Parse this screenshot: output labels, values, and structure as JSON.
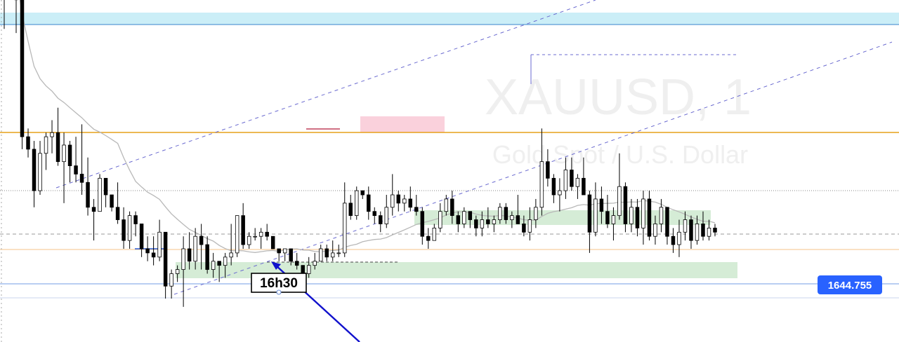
{
  "watermark": {
    "symbol": "XAUUSD, 1",
    "description": "Gold Spot / U.S. Dollar"
  },
  "price_badge": {
    "label": "1644.755",
    "color": "#2962ff"
  },
  "callout": {
    "label": "16h30",
    "arrow_color": "#1111cc"
  },
  "chart_data": {
    "type": "candlestick",
    "symbol": "XAUUSD",
    "timeframe": "1",
    "last_price_label": "1644.755",
    "annotation": "16h30",
    "colors": {
      "bullish": "#ffffff",
      "bearish": "#000000",
      "wick": "#000000"
    },
    "candles_ohlc": [
      [
        1652.2,
        1653.0,
        1650.9,
        1652.7
      ],
      [
        1652.7,
        1653.0,
        1651.6,
        1652.4
      ],
      [
        1652.4,
        1652.4,
        1650.8,
        1651.6
      ],
      [
        1651.6,
        1651.6,
        1648.0,
        1648.3
      ],
      [
        1648.3,
        1648.5,
        1647.8,
        1648.0
      ],
      [
        1648.0,
        1648.2,
        1646.6,
        1647.0
      ],
      [
        1647.0,
        1648.2,
        1646.9,
        1647.9
      ],
      [
        1647.9,
        1648.4,
        1647.5,
        1648.3
      ],
      [
        1648.3,
        1648.7,
        1647.9,
        1648.4
      ],
      [
        1648.4,
        1649.0,
        1647.6,
        1647.7
      ],
      [
        1647.7,
        1648.4,
        1646.7,
        1648.1
      ],
      [
        1648.1,
        1648.2,
        1647.2,
        1647.6
      ],
      [
        1647.6,
        1648.3,
        1647.2,
        1647.4
      ],
      [
        1647.4,
        1648.6,
        1646.9,
        1647.2
      ],
      [
        1647.2,
        1647.8,
        1646.4,
        1646.6
      ],
      [
        1646.6,
        1646.8,
        1645.8,
        1646.5
      ],
      [
        1646.5,
        1647.4,
        1646.5,
        1647.3
      ],
      [
        1647.3,
        1647.3,
        1646.6,
        1646.9
      ],
      [
        1646.9,
        1646.9,
        1646.5,
        1646.6
      ],
      [
        1646.6,
        1647.2,
        1646.2,
        1646.3
      ],
      [
        1646.3,
        1646.6,
        1645.6,
        1645.8
      ],
      [
        1645.8,
        1646.5,
        1645.6,
        1646.4
      ],
      [
        1646.4,
        1646.5,
        1645.9,
        1646.2
      ],
      [
        1646.2,
        1646.2,
        1645.4,
        1645.6
      ],
      [
        1645.6,
        1645.9,
        1645.3,
        1645.5
      ],
      [
        1645.5,
        1645.9,
        1645.2,
        1645.4
      ],
      [
        1645.4,
        1646.3,
        1645.3,
        1646.0
      ],
      [
        1646.0,
        1646.0,
        1644.4,
        1644.7
      ],
      [
        1644.7,
        1645.1,
        1644.4,
        1645.0
      ],
      [
        1645.0,
        1645.2,
        1644.8,
        1645.1
      ],
      [
        1645.1,
        1645.9,
        1644.2,
        1645.6
      ],
      [
        1645.6,
        1646.0,
        1645.1,
        1645.3
      ],
      [
        1645.3,
        1646.1,
        1645.1,
        1645.9
      ],
      [
        1645.9,
        1646.2,
        1645.1,
        1645.7
      ],
      [
        1645.7,
        1645.9,
        1645.0,
        1645.1
      ],
      [
        1645.1,
        1645.5,
        1644.9,
        1645.3
      ],
      [
        1645.3,
        1645.3,
        1644.8,
        1645.2
      ],
      [
        1645.2,
        1645.5,
        1644.9,
        1645.4
      ],
      [
        1645.4,
        1646.2,
        1645.2,
        1645.5
      ],
      [
        1645.5,
        1646.4,
        1645.4,
        1646.4
      ],
      [
        1646.4,
        1646.7,
        1645.6,
        1645.7
      ],
      [
        1645.7,
        1646.0,
        1645.6,
        1645.9
      ],
      [
        1645.9,
        1646.1,
        1645.8,
        1645.9
      ],
      [
        1645.9,
        1646.1,
        1645.6,
        1646.0
      ],
      [
        1646.0,
        1646.2,
        1645.8,
        1645.9
      ],
      [
        1645.9,
        1645.9,
        1645.6,
        1645.6
      ],
      [
        1645.6,
        1645.6,
        1645.3,
        1645.5
      ],
      [
        1645.5,
        1645.6,
        1645.3,
        1645.6
      ],
      [
        1645.6,
        1645.6,
        1645.2,
        1645.3
      ],
      [
        1645.3,
        1645.5,
        1645.1,
        1645.2
      ],
      [
        1645.2,
        1645.2,
        1644.9,
        1645.0
      ],
      [
        1645.0,
        1645.4,
        1644.9,
        1645.2
      ],
      [
        1645.2,
        1645.5,
        1645.1,
        1645.3
      ],
      [
        1645.3,
        1645.7,
        1645.3,
        1645.6
      ],
      [
        1645.6,
        1645.7,
        1645.3,
        1645.4
      ],
      [
        1645.4,
        1645.8,
        1645.3,
        1645.5
      ],
      [
        1645.5,
        1645.7,
        1645.4,
        1645.5
      ],
      [
        1645.5,
        1647.2,
        1645.4,
        1646.7
      ],
      [
        1646.7,
        1646.9,
        1646.3,
        1646.4
      ],
      [
        1646.4,
        1647.1,
        1646.3,
        1647.0
      ],
      [
        1647.0,
        1647.0,
        1646.8,
        1646.9
      ],
      [
        1646.9,
        1647.1,
        1646.3,
        1646.5
      ],
      [
        1646.5,
        1646.6,
        1646.2,
        1646.4
      ],
      [
        1646.4,
        1646.5,
        1646.0,
        1646.2
      ],
      [
        1646.2,
        1646.9,
        1646.1,
        1646.6
      ],
      [
        1646.6,
        1647.4,
        1646.4,
        1646.9
      ],
      [
        1646.9,
        1647.0,
        1646.5,
        1646.7
      ],
      [
        1646.7,
        1646.9,
        1646.5,
        1646.8
      ],
      [
        1646.8,
        1647.1,
        1646.5,
        1646.6
      ],
      [
        1646.6,
        1646.9,
        1646.4,
        1646.5
      ],
      [
        1646.5,
        1646.6,
        1645.7,
        1645.9
      ],
      [
        1645.9,
        1646.1,
        1645.6,
        1645.8
      ],
      [
        1645.8,
        1646.2,
        1645.8,
        1646.1
      ],
      [
        1646.1,
        1646.7,
        1646.0,
        1646.5
      ],
      [
        1646.5,
        1646.9,
        1646.4,
        1646.8
      ],
      [
        1646.8,
        1647.0,
        1646.2,
        1646.4
      ],
      [
        1646.4,
        1646.5,
        1646.0,
        1646.2
      ],
      [
        1646.2,
        1646.6,
        1646.1,
        1646.5
      ],
      [
        1646.5,
        1646.5,
        1646.1,
        1646.3
      ],
      [
        1646.3,
        1646.4,
        1645.9,
        1646.1
      ],
      [
        1646.1,
        1646.5,
        1645.9,
        1646.3
      ],
      [
        1646.3,
        1646.6,
        1646.1,
        1646.2
      ],
      [
        1646.2,
        1646.4,
        1646.0,
        1646.3
      ],
      [
        1646.3,
        1646.7,
        1646.2,
        1646.6
      ],
      [
        1646.6,
        1646.7,
        1646.2,
        1646.3
      ],
      [
        1646.3,
        1646.5,
        1646.1,
        1646.4
      ],
      [
        1646.4,
        1646.9,
        1646.2,
        1646.2
      ],
      [
        1646.2,
        1646.4,
        1645.9,
        1646.0
      ],
      [
        1646.0,
        1646.6,
        1645.8,
        1646.3
      ],
      [
        1646.3,
        1646.8,
        1646.1,
        1646.6
      ],
      [
        1646.6,
        1648.5,
        1646.4,
        1647.7
      ],
      [
        1647.7,
        1648.0,
        1647.1,
        1647.3
      ],
      [
        1647.3,
        1647.4,
        1646.7,
        1646.9
      ],
      [
        1646.9,
        1647.3,
        1646.5,
        1647.0
      ],
      [
        1647.0,
        1647.8,
        1646.8,
        1647.5
      ],
      [
        1647.5,
        1647.8,
        1647.0,
        1647.1
      ],
      [
        1647.1,
        1647.4,
        1646.8,
        1647.3
      ],
      [
        1647.3,
        1647.8,
        1647.0,
        1646.9
      ],
      [
        1646.9,
        1647.0,
        1645.5,
        1646.0
      ],
      [
        1646.0,
        1647.2,
        1645.9,
        1646.8
      ],
      [
        1646.8,
        1647.1,
        1646.2,
        1646.5
      ],
      [
        1646.5,
        1646.9,
        1646.1,
        1646.2
      ],
      [
        1646.2,
        1646.6,
        1645.8,
        1646.4
      ],
      [
        1646.4,
        1647.9,
        1646.3,
        1647.1
      ],
      [
        1647.1,
        1647.2,
        1646.0,
        1646.2
      ],
      [
        1646.2,
        1646.8,
        1646.0,
        1646.6
      ],
      [
        1646.6,
        1646.8,
        1645.9,
        1646.1
      ],
      [
        1646.1,
        1647.0,
        1645.7,
        1646.8
      ],
      [
        1646.8,
        1647.0,
        1645.8,
        1645.9
      ],
      [
        1645.9,
        1646.4,
        1645.7,
        1646.2
      ],
      [
        1646.2,
        1646.8,
        1646.0,
        1646.6
      ],
      [
        1646.6,
        1646.6,
        1645.7,
        1645.9
      ],
      [
        1645.9,
        1646.1,
        1645.5,
        1645.7
      ],
      [
        1645.7,
        1646.3,
        1645.4,
        1646.0
      ],
      [
        1646.0,
        1646.5,
        1645.8,
        1646.3
      ],
      [
        1646.3,
        1646.4,
        1645.6,
        1645.8
      ],
      [
        1645.8,
        1646.4,
        1645.7,
        1646.2
      ],
      [
        1646.2,
        1646.5,
        1645.8,
        1645.9
      ],
      [
        1645.9,
        1646.3,
        1645.8,
        1646.1
      ],
      [
        1646.1,
        1646.2,
        1645.9,
        1646.0
      ]
    ]
  }
}
